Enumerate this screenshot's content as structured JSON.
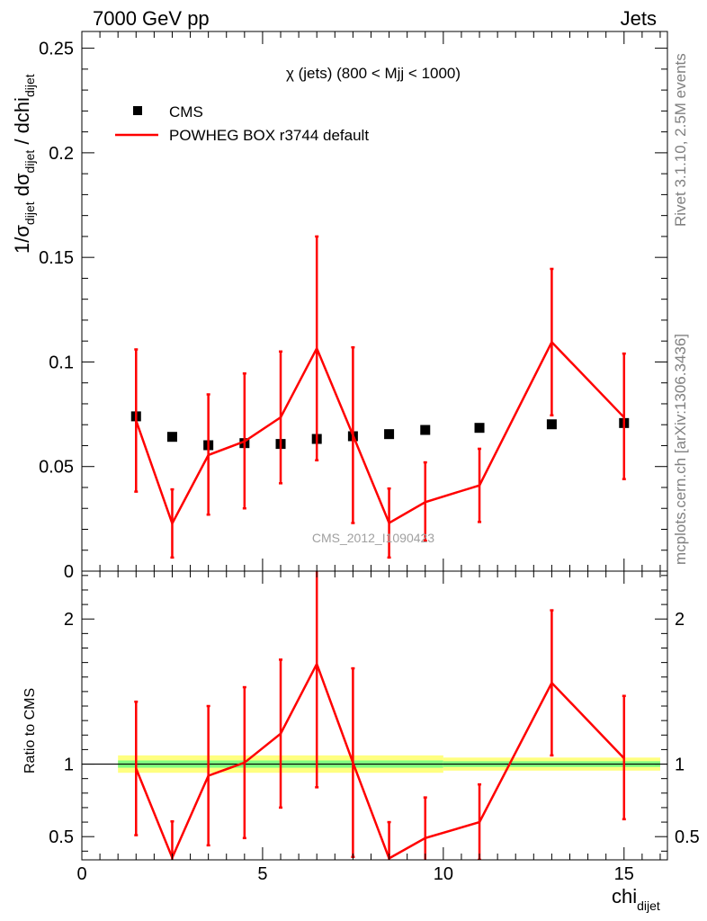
{
  "header": {
    "left": "7000 GeV pp",
    "right": "Jets"
  },
  "side_labels": {
    "rivet": "Rivet 3.1.10,  2.5M events",
    "mcplots": "mcplots.cern.ch [arXiv:1306.3436]"
  },
  "chart_data": [
    {
      "type": "scatter",
      "panel": "main",
      "title": "χ (jets) (800 < Mjj < 1000)",
      "watermark": "CMS_2012_I1090423",
      "ylabel": "1/σ_dijet dσ_dijet / dchi_dijet",
      "xlabel": "chi_dijet",
      "xlim": [
        0,
        16.2
      ],
      "ylim": [
        0,
        0.258
      ],
      "x_ticks": [
        "0",
        "5",
        "10",
        "15"
      ],
      "y_ticks": [
        "0",
        "0.05",
        "0.1",
        "0.15",
        "0.2",
        "0.25"
      ],
      "series": [
        {
          "name": "CMS",
          "color": "#000000",
          "style": "marker",
          "x": [
            1.5,
            2.5,
            3.5,
            4.5,
            5.5,
            6.5,
            7.5,
            8.5,
            9.5,
            11,
            13,
            15
          ],
          "y": [
            0.074,
            0.0642,
            0.0602,
            0.0612,
            0.0608,
            0.0632,
            0.0645,
            0.0655,
            0.0675,
            0.0685,
            0.0702,
            0.0708
          ]
        },
        {
          "name": "POWHEG BOX r3744 default",
          "color": "#ff0000",
          "style": "line",
          "x": [
            1.5,
            2.5,
            3.5,
            4.5,
            5.5,
            6.5,
            7.5,
            8.5,
            9.5,
            11,
            13,
            15
          ],
          "y": [
            0.072,
            0.0228,
            0.0555,
            0.062,
            0.0735,
            0.1065,
            0.065,
            0.023,
            0.033,
            0.041,
            0.1095,
            0.0735
          ],
          "err_low": [
            0.034,
            0.0163,
            0.0285,
            0.032,
            0.0315,
            0.0535,
            0.042,
            0.0165,
            0.0185,
            0.0175,
            0.035,
            0.0295
          ],
          "err_high": [
            0.034,
            0.0163,
            0.029,
            0.0325,
            0.0315,
            0.0535,
            0.042,
            0.0165,
            0.019,
            0.0175,
            0.035,
            0.0305
          ]
        }
      ]
    },
    {
      "type": "line",
      "panel": "ratio",
      "ylabel": "Ratio to CMS",
      "xlabel": "chi_dijet",
      "xlim": [
        0,
        16.2
      ],
      "ylim": [
        0.34,
        2.33
      ],
      "x_ticks": [
        "0",
        "5",
        "10",
        "15"
      ],
      "y_ticks": [
        "0.5",
        "1",
        "2"
      ],
      "reference_band": {
        "x": [
          1,
          10,
          16
        ],
        "outer": [
          [
            0.94,
            1.06
          ],
          [
            0.955,
            1.045
          ]
        ],
        "inner": [
          [
            0.975,
            1.025
          ],
          [
            0.98,
            1.02
          ]
        ]
      },
      "series": [
        {
          "name": "POWHEG BOX r3744 default",
          "color": "#ff0000",
          "x": [
            1.5,
            2.5,
            3.5,
            4.5,
            5.5,
            6.5,
            7.5,
            8.5,
            9.5,
            11,
            13,
            15
          ],
          "y": [
            0.97,
            0.355,
            0.92,
            1.01,
            1.21,
            1.69,
            1.01,
            0.35,
            0.49,
            0.6,
            1.56,
            1.04
          ],
          "err_low": [
            0.46,
            0.25,
            0.48,
            0.52,
            0.51,
            0.85,
            0.65,
            0.25,
            0.27,
            0.26,
            0.5,
            0.42
          ],
          "err_high": [
            0.46,
            0.25,
            0.48,
            0.52,
            0.51,
            0.85,
            0.65,
            0.25,
            0.28,
            0.26,
            0.5,
            0.43
          ]
        }
      ]
    }
  ]
}
